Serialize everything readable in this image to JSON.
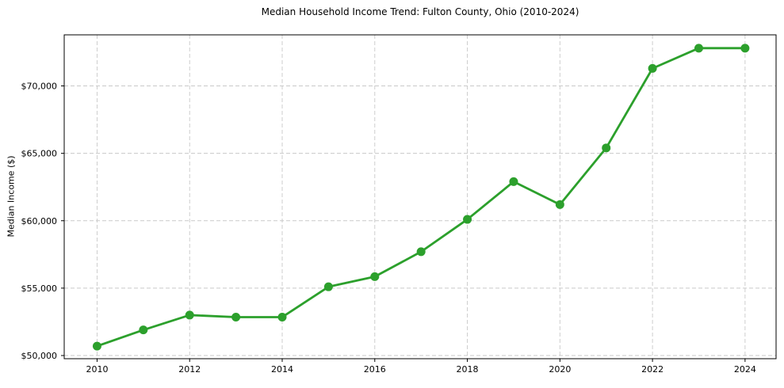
{
  "chart_data": {
    "type": "line",
    "title": "Median Household Income Trend: Fulton County, Ohio (2010-2024)",
    "xlabel": "",
    "ylabel": "Median Income ($)",
    "x": [
      2010,
      2011,
      2012,
      2013,
      2014,
      2015,
      2016,
      2017,
      2018,
      2019,
      2020,
      2021,
      2022,
      2023,
      2024
    ],
    "values": [
      50700,
      51900,
      53000,
      52850,
      52850,
      55100,
      55850,
      57700,
      60100,
      62900,
      61200,
      65400,
      71300,
      72800,
      72800
    ],
    "xticks": [
      2010,
      2012,
      2014,
      2016,
      2018,
      2020,
      2022,
      2024
    ],
    "xtick_labels": [
      "2010",
      "2012",
      "2014",
      "2016",
      "2018",
      "2020",
      "2022",
      "2024"
    ],
    "ytick_values": [
      50000,
      55000,
      60000,
      65000,
      70000
    ],
    "ytick_labels": [
      "$50,000",
      "$55,000",
      "$60,000",
      "$65,000",
      "$70,000"
    ],
    "xlim": [
      2009.29,
      2024.67
    ],
    "ylim": [
      49765,
      73789
    ],
    "grid": "dashed",
    "legend": "none",
    "line_color": "#2ca02c",
    "marker": "circle",
    "grid_color": "#c9c9c9",
    "spine_color": "#000000",
    "background_color": "#ffffff"
  }
}
